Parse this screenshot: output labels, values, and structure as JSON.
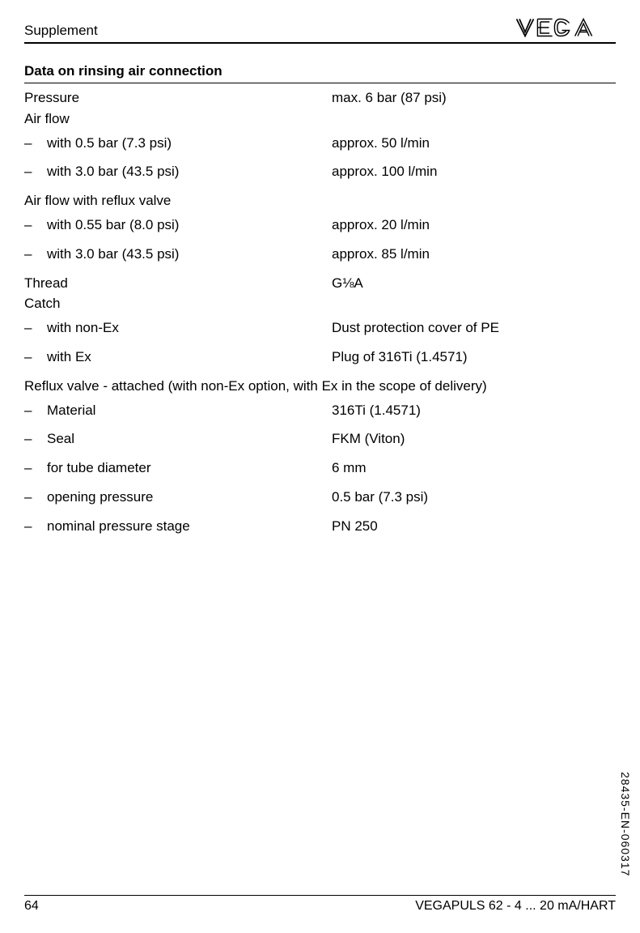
{
  "header": {
    "section": "Supplement"
  },
  "section_title": "Data on rinsing air connection",
  "rows": [
    {
      "label": "Pressure",
      "value": "max. 6 bar (87 psi)",
      "indent": false,
      "spacing": "normal"
    },
    {
      "label": "Air flow",
      "value": "",
      "indent": false,
      "spacing": "tight"
    },
    {
      "label": "with 0.5 bar (7.3 psi)",
      "value": "approx. 50 l/min",
      "indent": true,
      "spacing": "normal"
    },
    {
      "label": "with 3.0 bar (43.5 psi)",
      "value": "approx. 100 l/min",
      "indent": true,
      "spacing": "spaced"
    },
    {
      "label": "Air flow with reflux valve",
      "value": "",
      "indent": false,
      "spacing": "spaced"
    },
    {
      "label": "with 0.55 bar (8.0 psi)",
      "value": "approx. 20 l/min",
      "indent": true,
      "spacing": "normal"
    },
    {
      "label": "with 3.0 bar (43.5 psi)",
      "value": "approx. 85 l/min",
      "indent": true,
      "spacing": "spaced"
    },
    {
      "label": "Thread",
      "value": "G⅛A",
      "indent": false,
      "spacing": "spaced"
    },
    {
      "label": "Catch",
      "value": "",
      "indent": false,
      "spacing": "tight"
    },
    {
      "label": "with non-Ex",
      "value": "Dust protection cover of PE",
      "indent": true,
      "spacing": "normal"
    },
    {
      "label": "with Ex",
      "value": "Plug of 316Ti (1.4571)",
      "indent": true,
      "spacing": "spaced"
    },
    {
      "label": "Reflux valve - attached (with non-Ex option, with Ex in the scope of delivery)",
      "value": "",
      "indent": false,
      "spacing": "spaced"
    },
    {
      "label": "Material",
      "value": "316Ti (1.4571)",
      "indent": true,
      "spacing": "normal"
    },
    {
      "label": "Seal",
      "value": "FKM (Viton)",
      "indent": true,
      "spacing": "spaced"
    },
    {
      "label": "for tube diameter",
      "value": "6 mm",
      "indent": true,
      "spacing": "spaced"
    },
    {
      "label": "opening pressure",
      "value": "0.5 bar (7.3 psi)",
      "indent": true,
      "spacing": "spaced"
    },
    {
      "label": "nominal pressure stage",
      "value": "PN 250",
      "indent": true,
      "spacing": "spaced"
    }
  ],
  "footer": {
    "page": "64",
    "doc": "VEGAPULS 62 - 4 ... 20 mA/HART"
  },
  "vertical_code": "28435-EN-060317"
}
